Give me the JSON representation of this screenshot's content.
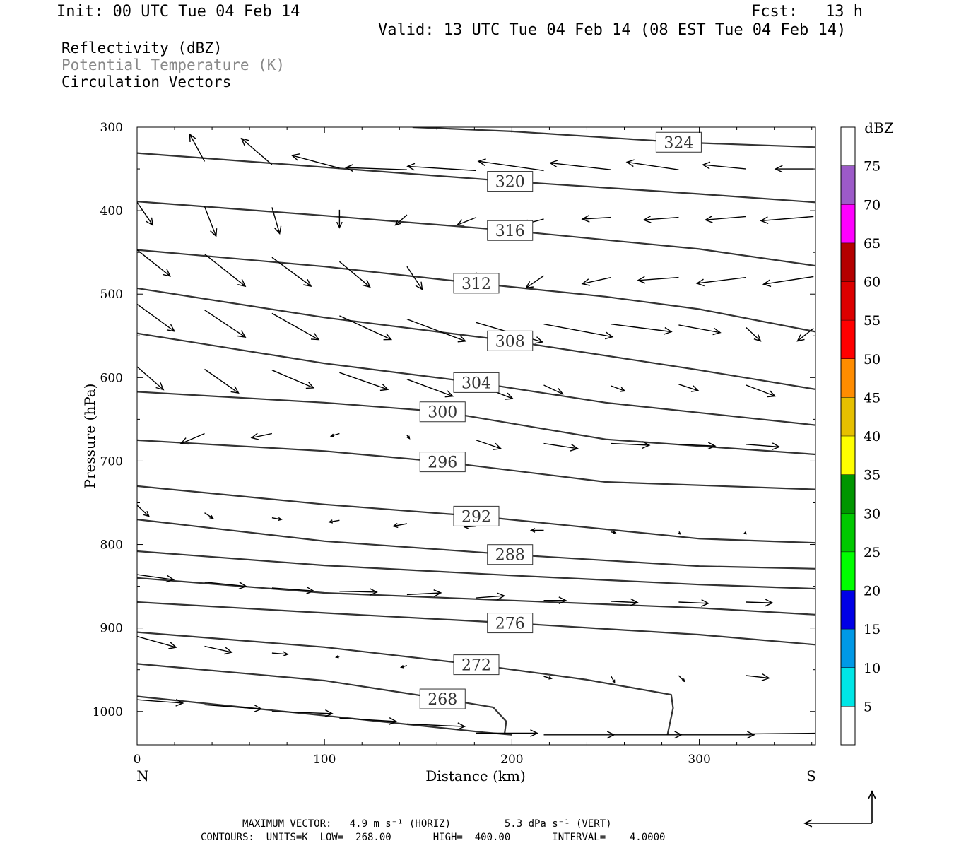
{
  "header": {
    "init": "Init: 00 UTC Tue 04 Feb 14",
    "fcst_label": "Fcst:",
    "fcst_value": "13 h",
    "valid": "Valid: 13 UTC Tue 04 Feb 14 (08 EST Tue 04 Feb 14)"
  },
  "legend": {
    "line1": "Reflectivity (dBZ)",
    "line2": "Potential Temperature (K)",
    "line3": "Circulation Vectors",
    "line2_color": "#888888"
  },
  "footer": {
    "line1": "MAXIMUM VECTOR:   4.9 m s⁻¹ (HORIZ)         5.3 dPa s⁻¹ (VERT)",
    "line2": "CONTOURS:  UNITS=K  LOW=  268.00       HIGH=  400.00       INTERVAL=    4.0000"
  },
  "chart_data": {
    "type": "cross-section",
    "xlabel": "Distance (km)",
    "ylabel": "Pressure (hPa)",
    "xlim": [
      0,
      362
    ],
    "ylim": [
      1040,
      300
    ],
    "x_ticks": [
      0,
      100,
      200,
      300
    ],
    "y_ticks": [
      300,
      400,
      500,
      600,
      700,
      800,
      900,
      1000
    ],
    "left_label": "N",
    "right_label": "S",
    "ground_pressure": 1028,
    "isentropes": [
      {
        "value": 324,
        "label": "324",
        "label_x": 289,
        "points": [
          [
            147,
            300
          ],
          [
            200,
            305
          ],
          [
            289,
            318
          ],
          [
            362,
            324
          ]
        ]
      },
      {
        "value": 320,
        "label": "320",
        "label_x": 199,
        "points": [
          [
            0,
            331
          ],
          [
            100,
            348
          ],
          [
            200,
            365
          ],
          [
            300,
            380
          ],
          [
            362,
            390
          ]
        ]
      },
      {
        "value": 316,
        "label": "316",
        "label_x": 199,
        "points": [
          [
            0,
            389
          ],
          [
            100,
            406
          ],
          [
            200,
            424
          ],
          [
            300,
            446
          ],
          [
            362,
            466
          ]
        ]
      },
      {
        "value": 312,
        "label": "312",
        "label_x": 181,
        "points": [
          [
            0,
            447
          ],
          [
            100,
            467
          ],
          [
            181,
            487
          ],
          [
            250,
            503
          ],
          [
            300,
            518
          ],
          [
            362,
            545
          ]
        ]
      },
      {
        "value": 308,
        "label": "308",
        "label_x": 199,
        "points": [
          [
            0,
            493
          ],
          [
            100,
            528
          ],
          [
            199,
            556
          ],
          [
            300,
            591
          ],
          [
            362,
            614
          ]
        ]
      },
      {
        "value": 304,
        "label": "304",
        "label_x": 181,
        "points": [
          [
            0,
            547
          ],
          [
            100,
            583
          ],
          [
            181,
            606
          ],
          [
            250,
            630
          ],
          [
            362,
            657
          ]
        ]
      },
      {
        "value": 300,
        "label": "300",
        "label_x": 163,
        "points": [
          [
            0,
            617
          ],
          [
            100,
            630
          ],
          [
            163,
            641
          ],
          [
            250,
            674
          ],
          [
            362,
            692
          ]
        ]
      },
      {
        "value": 296,
        "label": "296",
        "label_x": 163,
        "points": [
          [
            0,
            675
          ],
          [
            100,
            688
          ],
          [
            163,
            701
          ],
          [
            250,
            725
          ],
          [
            362,
            734
          ]
        ]
      },
      {
        "value": 292,
        "label": "292",
        "label_x": 181,
        "points": [
          [
            0,
            730
          ],
          [
            100,
            752
          ],
          [
            181,
            766
          ],
          [
            300,
            793
          ],
          [
            362,
            798
          ]
        ]
      },
      {
        "value": 288,
        "label": "288",
        "label_x": 199,
        "points": [
          [
            0,
            770
          ],
          [
            100,
            796
          ],
          [
            199,
            812
          ],
          [
            300,
            826
          ],
          [
            362,
            829
          ]
        ]
      },
      {
        "value": 284,
        "label": "",
        "label_x": 0,
        "points": [
          [
            0,
            808
          ],
          [
            100,
            825
          ],
          [
            199,
            837
          ],
          [
            300,
            848
          ],
          [
            362,
            853
          ]
        ]
      },
      {
        "value": 280,
        "label": "",
        "label_x": 0,
        "points": [
          [
            0,
            840
          ],
          [
            100,
            858
          ],
          [
            199,
            867
          ],
          [
            300,
            876
          ],
          [
            362,
            884
          ]
        ]
      },
      {
        "value": 276,
        "label": "276",
        "label_x": 199,
        "points": [
          [
            0,
            869
          ],
          [
            100,
            882
          ],
          [
            199,
            894
          ],
          [
            300,
            908
          ],
          [
            362,
            920
          ]
        ]
      },
      {
        "value": 272,
        "label": "272",
        "label_x": 181,
        "points": [
          [
            0,
            905
          ],
          [
            100,
            923
          ],
          [
            181,
            944
          ],
          [
            240,
            962
          ],
          [
            285,
            980
          ],
          [
            286,
            996
          ],
          [
            283,
            1028
          ]
        ]
      },
      {
        "value": 268,
        "label": "268",
        "label_x": 163,
        "points": [
          [
            0,
            943
          ],
          [
            100,
            963
          ],
          [
            163,
            985
          ],
          [
            190,
            995
          ],
          [
            197,
            1012
          ],
          [
            196,
            1028
          ]
        ]
      },
      {
        "value": 264,
        "label": "",
        "label_x": 0,
        "points": [
          [
            0,
            982
          ],
          [
            100,
            1005
          ],
          [
            185,
            1025
          ],
          [
            200,
            1028
          ]
        ]
      }
    ],
    "vectors": [
      {
        "x": 36,
        "p": 341,
        "u": -3.5,
        "w": -6.4
      },
      {
        "x": 72,
        "p": 345,
        "u": -7.2,
        "w": -6.2
      },
      {
        "x": 108,
        "p": 349,
        "u": -11.2,
        "w": -3.0
      },
      {
        "x": 144,
        "p": 351,
        "u": -14.4,
        "w": -0.5
      },
      {
        "x": 181,
        "p": 352,
        "u": -16.2,
        "w": -1.0
      },
      {
        "x": 217,
        "p": 352,
        "u": -15.4,
        "w": -2.2
      },
      {
        "x": 253,
        "p": 351,
        "u": -14.4,
        "w": -1.6
      },
      {
        "x": 289,
        "p": 351,
        "u": -12.2,
        "w": -1.8
      },
      {
        "x": 325,
        "p": 350,
        "u": -10.2,
        "w": -1.0
      },
      {
        "x": 361,
        "p": 350,
        "u": -9.0,
        "w": 0
      },
      {
        "x": 0,
        "p": 390,
        "u": 3.7,
        "w": 5.4
      },
      {
        "x": 36,
        "p": 395,
        "u": 2.7,
        "w": 7.0
      },
      {
        "x": 72,
        "p": 396,
        "u": 1.8,
        "w": 6.2
      },
      {
        "x": 108,
        "p": 399,
        "u": 0,
        "w": 4.2
      },
      {
        "x": 144,
        "p": 405,
        "u": -2.7,
        "w": 2.4
      },
      {
        "x": 181,
        "p": 408,
        "u": -4.5,
        "w": 1.8
      },
      {
        "x": 217,
        "p": 410,
        "u": -5.2,
        "w": 1.4
      },
      {
        "x": 253,
        "p": 408,
        "u": -6.8,
        "w": 0.4
      },
      {
        "x": 289,
        "p": 408,
        "u": -8.2,
        "w": 0.6
      },
      {
        "x": 325,
        "p": 407,
        "u": -9.6,
        "w": 0.8
      },
      {
        "x": 361,
        "p": 407,
        "u": -12.4,
        "w": 1.0
      },
      {
        "x": 0,
        "p": 447,
        "u": 7.8,
        "w": 6.2
      },
      {
        "x": 36,
        "p": 452,
        "u": 9.6,
        "w": 7.6
      },
      {
        "x": 72,
        "p": 456,
        "u": 9.2,
        "w": 6.8
      },
      {
        "x": 108,
        "p": 461,
        "u": 7.2,
        "w": 6.0
      },
      {
        "x": 144,
        "p": 467,
        "u": 3.6,
        "w": 5.4
      },
      {
        "x": 181,
        "p": 474,
        "u": -0.4,
        "w": 3.2
      },
      {
        "x": 217,
        "p": 478,
        "u": -4.2,
        "w": 2.9
      },
      {
        "x": 253,
        "p": 480,
        "u": -6.8,
        "w": 1.5
      },
      {
        "x": 289,
        "p": 480,
        "u": -9.6,
        "w": 0.7
      },
      {
        "x": 325,
        "p": 480,
        "u": -11.6,
        "w": 1.4
      },
      {
        "x": 361,
        "p": 479,
        "u": -11.8,
        "w": 1.8
      },
      {
        "x": 0,
        "p": 512,
        "u": 8.8,
        "w": 6.4
      },
      {
        "x": 36,
        "p": 519,
        "u": 9.6,
        "w": 6.4
      },
      {
        "x": 72,
        "p": 523,
        "u": 11.0,
        "w": 6.2
      },
      {
        "x": 108,
        "p": 526,
        "u": 12.2,
        "w": 5.6
      },
      {
        "x": 144,
        "p": 530,
        "u": 13.8,
        "w": 5.2
      },
      {
        "x": 181,
        "p": 534,
        "u": 15.6,
        "w": 4.6
      },
      {
        "x": 217,
        "p": 536,
        "u": 16.2,
        "w": 3.0
      },
      {
        "x": 253,
        "p": 536,
        "u": 14.2,
        "w": 1.8
      },
      {
        "x": 289,
        "p": 537,
        "u": 9.8,
        "w": 1.8
      },
      {
        "x": 325,
        "p": 540,
        "u": 3.4,
        "w": 3.2
      },
      {
        "x": 361,
        "p": 541,
        "u": -3.8,
        "w": 3.0
      },
      {
        "x": 0,
        "p": 587,
        "u": 6.2,
        "w": 5.4
      },
      {
        "x": 36,
        "p": 590,
        "u": 8.0,
        "w": 5.6
      },
      {
        "x": 72,
        "p": 591,
        "u": 9.8,
        "w": 4.2
      },
      {
        "x": 108,
        "p": 594,
        "u": 11.4,
        "w": 4.0
      },
      {
        "x": 144,
        "p": 602,
        "u": 10.8,
        "w": 4.0
      },
      {
        "x": 181,
        "p": 608,
        "u": 8.6,
        "w": 3.4
      },
      {
        "x": 217,
        "p": 609,
        "u": 4.5,
        "w": 2.1
      },
      {
        "x": 253,
        "p": 610,
        "u": 3.2,
        "w": 1.2
      },
      {
        "x": 289,
        "p": 608,
        "u": 4.6,
        "w": 1.5
      },
      {
        "x": 325,
        "p": 609,
        "u": 6.8,
        "w": 2.6
      },
      {
        "x": 36,
        "p": 667,
        "u": -5.6,
        "w": 2.4
      },
      {
        "x": 72,
        "p": 667,
        "u": -4.8,
        "w": 1.0
      },
      {
        "x": 108,
        "p": 667,
        "u": -2.0,
        "w": 0.6
      },
      {
        "x": 144,
        "p": 669,
        "u": 0.6,
        "w": 0.8
      },
      {
        "x": 181,
        "p": 675,
        "u": 5.8,
        "w": 2.0
      },
      {
        "x": 217,
        "p": 679,
        "u": 8.0,
        "w": 1.2
      },
      {
        "x": 253,
        "p": 679,
        "u": 9.0,
        "w": 0.4
      },
      {
        "x": 289,
        "p": 680,
        "u": 8.6,
        "w": 0.4
      },
      {
        "x": 325,
        "p": 680,
        "u": 7.8,
        "w": 0.6
      },
      {
        "x": 0,
        "p": 753,
        "u": 2.8,
        "w": 2.6
      },
      {
        "x": 36,
        "p": 762,
        "u": 2.0,
        "w": 1.3
      },
      {
        "x": 72,
        "p": 768,
        "u": 2.2,
        "w": 0.4
      },
      {
        "x": 108,
        "p": 771,
        "u": -2.4,
        "w": 0.4
      },
      {
        "x": 144,
        "p": 775,
        "u": -3.2,
        "w": 0.6
      },
      {
        "x": 181,
        "p": 778,
        "u": -2.8,
        "w": 0.2
      },
      {
        "x": 217,
        "p": 783,
        "u": -3.0,
        "w": 0
      },
      {
        "x": 253,
        "p": 785,
        "u": 1.0,
        "w": 0.2
      },
      {
        "x": 289,
        "p": 786,
        "u": 0.4,
        "w": 0.3
      },
      {
        "x": 325,
        "p": 786,
        "u": -0.5,
        "w": 0.2
      },
      {
        "x": 0,
        "p": 836,
        "u": 8.6,
        "w": 1.2
      },
      {
        "x": 36,
        "p": 845,
        "u": 9.8,
        "w": 1.0
      },
      {
        "x": 72,
        "p": 852,
        "u": 9.8,
        "w": 0.7
      },
      {
        "x": 108,
        "p": 856,
        "u": 8.8,
        "w": 0.2
      },
      {
        "x": 144,
        "p": 860,
        "u": 8.0,
        "w": -0.4
      },
      {
        "x": 181,
        "p": 864,
        "u": 6.6,
        "w": -0.5
      },
      {
        "x": 217,
        "p": 867,
        "u": 5.2,
        "w": 0
      },
      {
        "x": 253,
        "p": 868,
        "u": 6.2,
        "w": 0.3
      },
      {
        "x": 289,
        "p": 869,
        "u": 7.0,
        "w": 0.3
      },
      {
        "x": 325,
        "p": 869,
        "u": 6.2,
        "w": 0.2
      },
      {
        "x": 0,
        "p": 910,
        "u": 9.2,
        "w": 2.6
      },
      {
        "x": 36,
        "p": 922,
        "u": 6.4,
        "w": 1.4
      },
      {
        "x": 72,
        "p": 930,
        "u": 3.7,
        "w": 0.3
      },
      {
        "x": 108,
        "p": 934,
        "u": -0.8,
        "w": 0.2
      },
      {
        "x": 144,
        "p": 945,
        "u": -1.4,
        "w": 0.4
      },
      {
        "x": 181,
        "p": 950,
        "u": -4.2,
        "w": -0.4
      },
      {
        "x": 217,
        "p": 958,
        "u": 1.8,
        "w": 0.5
      },
      {
        "x": 253,
        "p": 958,
        "u": 0.8,
        "w": 1.4
      },
      {
        "x": 289,
        "p": 957,
        "u": 1.4,
        "w": 1.4
      },
      {
        "x": 325,
        "p": 957,
        "u": 5.4,
        "w": 0.6
      },
      {
        "x": 0,
        "p": 986,
        "u": 10.8,
        "w": 0.8
      },
      {
        "x": 36,
        "p": 992,
        "u": 13.4,
        "w": 1.0
      },
      {
        "x": 72,
        "p": 1000,
        "u": 14.2,
        "w": 0.5
      },
      {
        "x": 108,
        "p": 1008,
        "u": 13.4,
        "w": 0.8
      },
      {
        "x": 144,
        "p": 1015,
        "u": 13.6,
        "w": 0.6
      },
      {
        "x": 181,
        "p": 1026,
        "u": 14.4,
        "w": 0
      },
      {
        "x": 217,
        "p": 1028,
        "u": 16.6,
        "w": 0
      },
      {
        "x": 253,
        "p": 1028,
        "u": 16.6,
        "w": 0
      },
      {
        "x": 289,
        "p": 1028,
        "u": 17.8,
        "w": 0
      },
      {
        "x": 325,
        "p": 1027,
        "u": 19.0,
        "w": -0.2
      }
    ],
    "colorbar": {
      "title": "dBZ",
      "levels": [
        5,
        10,
        15,
        20,
        25,
        30,
        35,
        40,
        45,
        50,
        55,
        60,
        65,
        70,
        75
      ],
      "colors": [
        "#ffffff",
        "#00e6e6",
        "#0099e6",
        "#0000e6",
        "#00ff00",
        "#00c800",
        "#009600",
        "#ffff00",
        "#e6c000",
        "#ff8c00",
        "#ff0000",
        "#dc0000",
        "#b40000",
        "#ff00ff",
        "#9c5ac8",
        "#ffffff"
      ]
    },
    "reference_vector": {
      "u": -9.5,
      "w": 4.5
    }
  }
}
